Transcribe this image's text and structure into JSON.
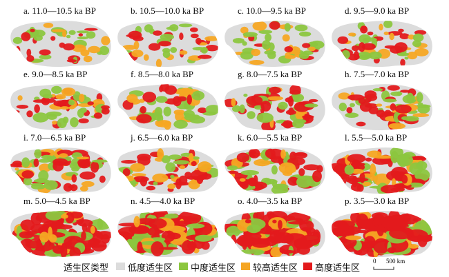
{
  "panels": [
    {
      "label": "a. 11.0—10.5 ka BP",
      "level": 0.15
    },
    {
      "label": "b. 10.5—10.0 ka BP",
      "level": 0.17
    },
    {
      "label": "c. 10.0—9.5 ka BP",
      "level": 0.2
    },
    {
      "label": "d. 9.5—9.0 ka BP",
      "level": 0.23
    },
    {
      "label": "e. 9.0—8.5 ka BP",
      "level": 0.27
    },
    {
      "label": "f. 8.5—8.0 ka BP",
      "level": 0.3
    },
    {
      "label": "g. 8.0—7.5 ka BP",
      "level": 0.33
    },
    {
      "label": "h. 7.5—7.0 ka BP",
      "level": 0.35
    },
    {
      "label": "i. 7.0—6.5 ka BP",
      "level": 0.4
    },
    {
      "label": "j. 6.5—6.0 ka BP",
      "level": 0.36
    },
    {
      "label": "k. 6.0—5.5 ka BP",
      "level": 0.45
    },
    {
      "label": "l. 5.5—5.0 ka BP",
      "level": 0.62
    },
    {
      "label": "m. 5.0—4.5 ka BP",
      "level": 0.8
    },
    {
      "label": "n. 4.5—4.0 ka BP",
      "level": 0.88
    },
    {
      "label": "o. 4.0—3.5 ka BP",
      "level": 0.85
    },
    {
      "label": "p. 3.5—3.0 ka BP",
      "level": 0.9
    }
  ],
  "legend": {
    "title": "适生区类型",
    "items": [
      {
        "label": "低度适生区",
        "color": "#dcdcdc"
      },
      {
        "label": "中度适生区",
        "color": "#8cc63f"
      },
      {
        "label": "较高适生区",
        "color": "#f5a623"
      },
      {
        "label": "高度适生区",
        "color": "#e31a1c"
      }
    ]
  },
  "scale": {
    "zero": "0",
    "distance": "500 km"
  }
}
